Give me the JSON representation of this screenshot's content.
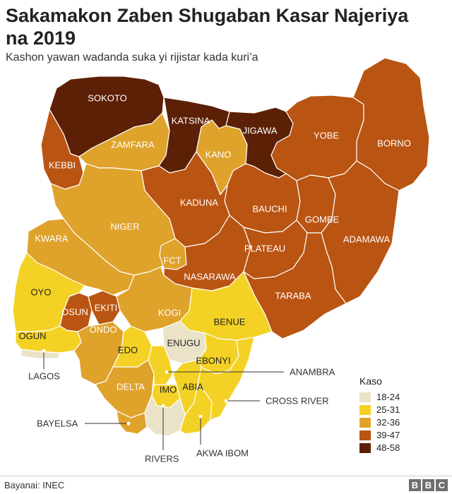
{
  "title": "Sakamakon Zaben Shugaban Kasar Najeriya na 2019",
  "subtitle": "Kashon yawan wadanda suka yi rijistar kada kuri’a",
  "source": "Bayanai: INEC",
  "logo_text": "BBC",
  "colors": {
    "c1": "#ebe3c7",
    "c2": "#f3d225",
    "c3": "#dfa22a",
    "c4": "#b95412",
    "c5": "#5c2006",
    "border": "#ffffff"
  },
  "legend": {
    "title": "Kaso",
    "items": [
      {
        "label": "18-24",
        "color": "#ebe3c7"
      },
      {
        "label": "25-31",
        "color": "#f3d225"
      },
      {
        "label": "32-36",
        "color": "#dfa22a"
      },
      {
        "label": "39-47",
        "color": "#b95412"
      },
      {
        "label": "48-58",
        "color": "#5c2006"
      }
    ]
  },
  "states": {
    "sokoto": "SOKOTO",
    "katsina": "KATSINA",
    "jigawa": "JIGAWA",
    "yobe": "YOBE",
    "borno": "BORNO",
    "zamfara": "ZAMFARA",
    "kebbi": "KEBBI",
    "kano": "KANO",
    "kaduna": "KADUNA",
    "bauchi": "BAUCHI",
    "gombe": "GOMBE",
    "adamawa": "ADAMAWA",
    "niger": "NIGER",
    "kwara": "KWARA",
    "plateau": "PLATEAU",
    "fct": "FCT",
    "nasarawa": "NASARAWA",
    "taraba": "TARABA",
    "oyo": "OYO",
    "osun": "OSUN",
    "ekiti": "EKITI",
    "kogi": "KOGI",
    "benue": "BENUE",
    "ogun": "OGUN",
    "ondo": "ONDO",
    "edo": "EDO",
    "enugu": "ENUGU",
    "ebonyi": "EBONYI",
    "delta": "DELTA",
    "imo": "IMO",
    "abia": "ABIA"
  },
  "callouts": {
    "lagos": "LAGOS",
    "anambra": "ANAMBRA",
    "cross_river": "CROSS RIVER",
    "bayelsa": "BAYELSA",
    "rivers": "RIVERS",
    "akwa_ibom": "AKWA IBOM"
  }
}
